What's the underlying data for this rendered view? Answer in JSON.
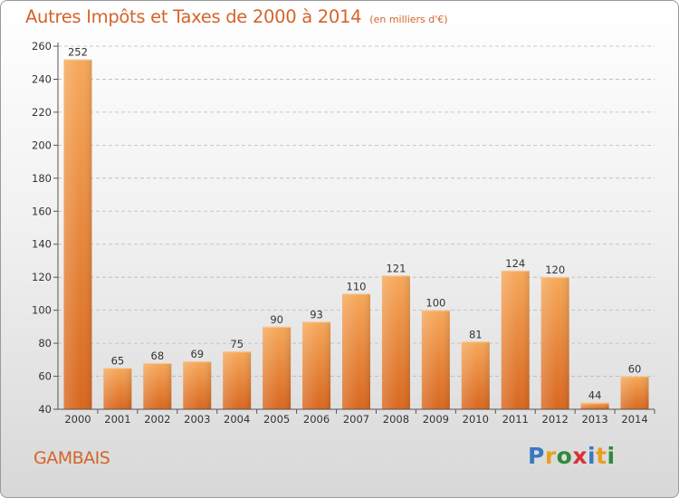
{
  "title": "Autres Impôts et Taxes de 2000 à 2014",
  "subtitle": "(en milliers d'€)",
  "location": "GAMBAIS",
  "logo": {
    "text": "Proxiti",
    "letter_colors": [
      "#3a78c2",
      "#e8a020",
      "#2f8a3a",
      "#d8303a",
      "#3a78c2",
      "#e8a020",
      "#2f8a3a"
    ]
  },
  "colors": {
    "bar_top": "#f6a85a",
    "bar_bottom": "#d8671f",
    "axis": "#555555",
    "grid": "#b9b9b9",
    "text": "#333333",
    "accent": "#d4642a"
  },
  "chart_data": {
    "type": "bar",
    "title": "Autres Impôts et Taxes de 2000 à 2014",
    "subtitle": "(en milliers d'€)",
    "categories": [
      "2000",
      "2001",
      "2002",
      "2003",
      "2004",
      "2005",
      "2006",
      "2007",
      "2008",
      "2009",
      "2010",
      "2011",
      "2012",
      "2013",
      "2014"
    ],
    "values": [
      252,
      65,
      68,
      69,
      75,
      90,
      93,
      110,
      121,
      100,
      81,
      124,
      120,
      44,
      60
    ],
    "ylim": [
      40,
      260
    ],
    "yticks": [
      40,
      60,
      80,
      100,
      120,
      140,
      160,
      180,
      200,
      220,
      240,
      260
    ],
    "grid": true,
    "data_labels": true
  }
}
